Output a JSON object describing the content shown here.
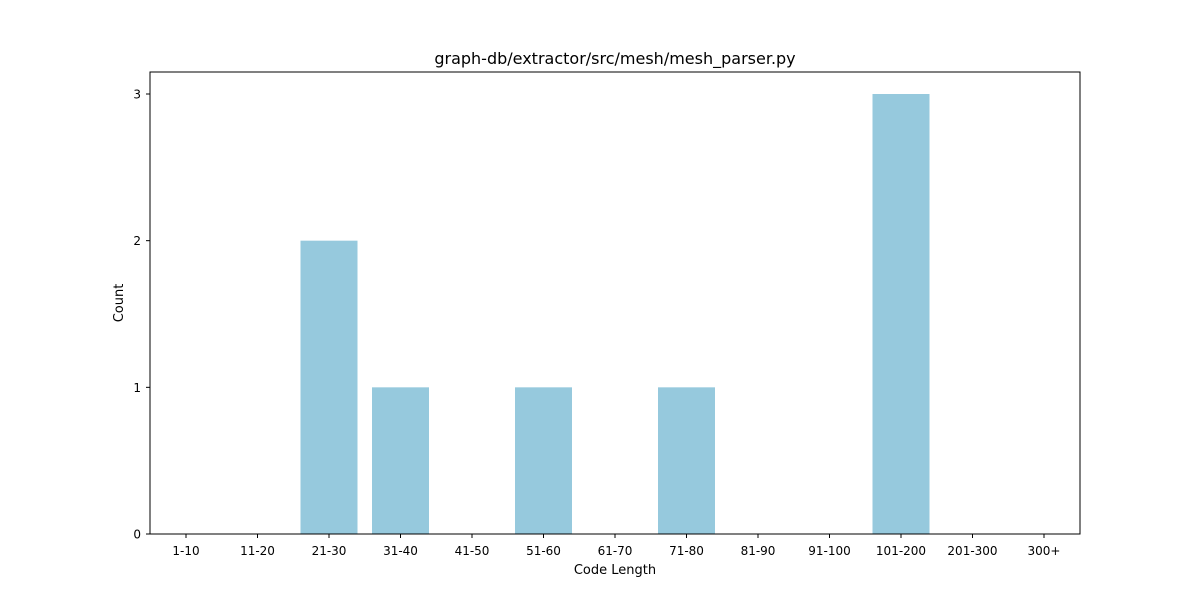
{
  "chart_data": {
    "type": "bar",
    "title": "graph-db/extractor/src/mesh/mesh_parser.py",
    "xlabel": "Code Length",
    "ylabel": "Count",
    "categories": [
      "1-10",
      "11-20",
      "21-30",
      "31-40",
      "41-50",
      "51-60",
      "61-70",
      "71-80",
      "81-90",
      "91-100",
      "101-200",
      "201-300",
      "300+"
    ],
    "values": [
      0,
      0,
      2,
      1,
      0,
      1,
      0,
      1,
      0,
      0,
      3,
      0,
      0
    ],
    "yticks": [
      0,
      1,
      2,
      3
    ],
    "ylim": [
      0,
      3.15
    ],
    "bar_color": "#96c9dd",
    "grid": false,
    "legend": "none"
  }
}
